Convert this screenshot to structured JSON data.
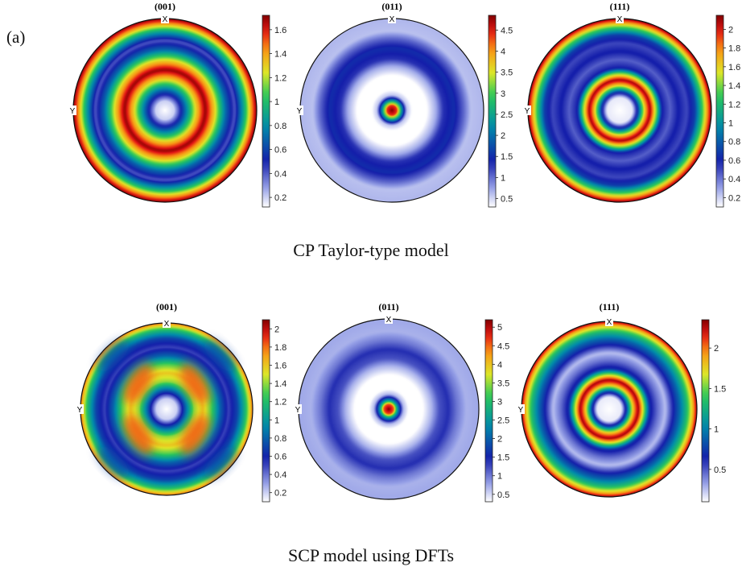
{
  "figure": {
    "panel_label": "(a)",
    "captions": [
      "CP Taylor-type model",
      "SCP model using DFTs"
    ]
  },
  "chart_data": [
    {
      "type": "pole-figure",
      "title": "(001)",
      "row_caption": "CP Taylor-type model",
      "axis_labels": {
        "top": "X",
        "left": "Y"
      },
      "colorbar": {
        "ticks": [
          0.2,
          0.4,
          0.6,
          0.8,
          1,
          1.2,
          1.4,
          1.6
        ],
        "tick_labels": [
          "0.2",
          "0.4",
          "0.6",
          "0.8",
          "1",
          "1.2",
          "1.4",
          "1.6"
        ],
        "range": [
          0.12,
          1.72
        ]
      },
      "radial_profile": [
        [
          0,
          0.12
        ],
        [
          0.1,
          0.2
        ],
        [
          0.22,
          0.7
        ],
        [
          0.34,
          1.3
        ],
        [
          0.44,
          1.7
        ],
        [
          0.54,
          1.3
        ],
        [
          0.66,
          0.7
        ],
        [
          0.76,
          0.4
        ],
        [
          0.86,
          0.9
        ],
        [
          0.94,
          1.4
        ],
        [
          1.0,
          1.72
        ]
      ]
    },
    {
      "type": "pole-figure",
      "title": "(011)",
      "row_caption": "CP Taylor-type model",
      "axis_labels": {
        "top": "X",
        "left": "Y"
      },
      "colorbar": {
        "ticks": [
          0.5,
          1,
          1.5,
          2,
          2.5,
          3,
          3.5,
          4,
          4.5
        ],
        "tick_labels": [
          "0.5",
          "1",
          "1.5",
          "2",
          "2.5",
          "3",
          "3.5",
          "4",
          "4.5"
        ],
        "range": [
          0.3,
          4.85
        ]
      },
      "radial_profile": [
        [
          0,
          4.85
        ],
        [
          0.05,
          4.4
        ],
        [
          0.1,
          2.5
        ],
        [
          0.16,
          0.6
        ],
        [
          0.22,
          0.3
        ],
        [
          0.38,
          0.3
        ],
        [
          0.48,
          0.7
        ],
        [
          0.56,
          1.3
        ],
        [
          0.68,
          1.5
        ],
        [
          0.78,
          1.05
        ],
        [
          0.86,
          0.6
        ],
        [
          1.0,
          0.65
        ]
      ]
    },
    {
      "type": "pole-figure",
      "title": "(111)",
      "row_caption": "CP Taylor-type model",
      "axis_labels": {
        "top": "X",
        "left": "Y"
      },
      "colorbar": {
        "ticks": [
          0.2,
          0.4,
          0.6,
          0.8,
          1,
          1.2,
          1.4,
          1.6,
          1.8,
          2
        ],
        "tick_labels": [
          "0.2",
          "0.4",
          "0.6",
          "0.8",
          "1",
          "1.2",
          "1.4",
          "1.6",
          "1.8",
          "2"
        ],
        "range": [
          0.1,
          2.15
        ]
      },
      "radial_profile": [
        [
          0,
          0.1
        ],
        [
          0.14,
          0.15
        ],
        [
          0.2,
          0.7
        ],
        [
          0.27,
          1.6
        ],
        [
          0.33,
          2.1
        ],
        [
          0.4,
          1.4
        ],
        [
          0.46,
          0.6
        ],
        [
          0.55,
          0.45
        ],
        [
          0.64,
          0.6
        ],
        [
          0.73,
          0.5
        ],
        [
          0.82,
          0.7
        ],
        [
          0.9,
          1.3
        ],
        [
          0.96,
          1.8
        ],
        [
          1.0,
          2.15
        ]
      ]
    },
    {
      "type": "pole-figure",
      "title": "(001)",
      "row_caption": "SCP model using DFTs",
      "axis_labels": {
        "top": "X",
        "left": "Y"
      },
      "colorbar": {
        "ticks": [
          0.2,
          0.4,
          0.6,
          0.8,
          1,
          1.2,
          1.4,
          1.6,
          1.8,
          2
        ],
        "tick_labels": [
          "0.2",
          "0.4",
          "0.6",
          "0.8",
          "1",
          "1.2",
          "1.4",
          "1.6",
          "1.8",
          "2"
        ],
        "range": [
          0.1,
          2.1
        ]
      },
      "radial_profile": [
        [
          0,
          0.1
        ],
        [
          0.12,
          0.2
        ],
        [
          0.22,
          0.8
        ],
        [
          0.32,
          1.4
        ],
        [
          0.42,
          1.6
        ],
        [
          0.52,
          1.3
        ],
        [
          0.62,
          0.8
        ],
        [
          0.72,
          0.5
        ],
        [
          0.82,
          0.7
        ],
        [
          0.92,
          1.2
        ],
        [
          1.0,
          1.8
        ]
      ],
      "angular_modulation": {
        "fold": 4,
        "amplitude": 0.35
      }
    },
    {
      "type": "pole-figure",
      "title": "(011)",
      "row_caption": "SCP model using DFTs",
      "axis_labels": {
        "top": "X",
        "left": "Y"
      },
      "colorbar": {
        "ticks": [
          0.5,
          1,
          1.5,
          2,
          2.5,
          3,
          3.5,
          4,
          4.5,
          5
        ],
        "tick_labels": [
          "0.5",
          "1",
          "1.5",
          "2",
          "2.5",
          "3",
          "3.5",
          "4",
          "4.5",
          "5"
        ],
        "range": [
          0.3,
          5.2
        ]
      },
      "radial_profile": [
        [
          0,
          5.2
        ],
        [
          0.05,
          4.6
        ],
        [
          0.1,
          2.4
        ],
        [
          0.16,
          0.7
        ],
        [
          0.22,
          0.3
        ],
        [
          0.38,
          0.3
        ],
        [
          0.48,
          0.7
        ],
        [
          0.56,
          1.2
        ],
        [
          0.66,
          1.4
        ],
        [
          0.76,
          1.0
        ],
        [
          0.86,
          0.7
        ],
        [
          1.0,
          0.75
        ]
      ]
    },
    {
      "type": "pole-figure",
      "title": "(111)",
      "row_caption": "SCP model using DFTs",
      "axis_labels": {
        "top": "X",
        "left": "Y"
      },
      "colorbar": {
        "ticks": [
          0.5,
          1,
          1.5,
          2
        ],
        "tick_labels": [
          "0.5",
          "1",
          "1.5",
          "2"
        ],
        "range": [
          0.1,
          2.35
        ]
      },
      "radial_profile": [
        [
          0,
          0.1
        ],
        [
          0.14,
          0.15
        ],
        [
          0.2,
          0.8
        ],
        [
          0.27,
          1.8
        ],
        [
          0.33,
          2.3
        ],
        [
          0.4,
          1.5
        ],
        [
          0.46,
          0.7
        ],
        [
          0.55,
          0.45
        ],
        [
          0.64,
          0.25
        ],
        [
          0.72,
          0.6
        ],
        [
          0.8,
          0.9
        ],
        [
          0.88,
          1.3
        ],
        [
          0.95,
          1.8
        ],
        [
          1.0,
          2.3
        ]
      ]
    }
  ]
}
